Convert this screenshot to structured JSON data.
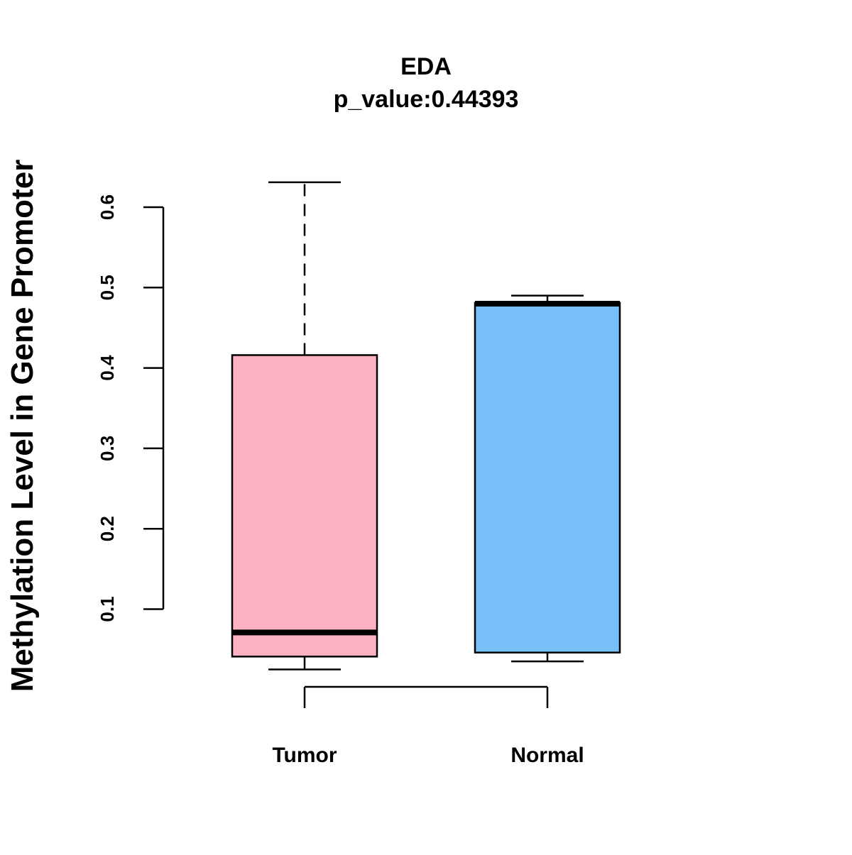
{
  "chart_data": {
    "type": "boxplot",
    "title": "EDA",
    "subtitle": "p_value:0.44393",
    "xlabel": "",
    "ylabel": "Methylation Level in Gene Promoter",
    "categories": [
      "Tumor",
      "Normal"
    ],
    "ylim": [
      0.1,
      0.6
    ],
    "yticks": [
      0.1,
      0.2,
      0.3,
      0.4,
      0.5,
      0.6
    ],
    "ytick_labels": [
      "0.1",
      "0.2",
      "0.3",
      "0.4",
      "0.5",
      "0.6"
    ],
    "grid": false,
    "series": [
      {
        "name": "Tumor",
        "color": "#FDB1C2",
        "whisker_low": 0.025,
        "q1": 0.041,
        "median": 0.071,
        "q3": 0.416,
        "whisker_high": 0.631
      },
      {
        "name": "Normal",
        "color": "#78C1F8",
        "whisker_low": 0.035,
        "q1": 0.046,
        "median": 0.48,
        "q3": 0.481,
        "whisker_high": 0.49
      }
    ]
  }
}
